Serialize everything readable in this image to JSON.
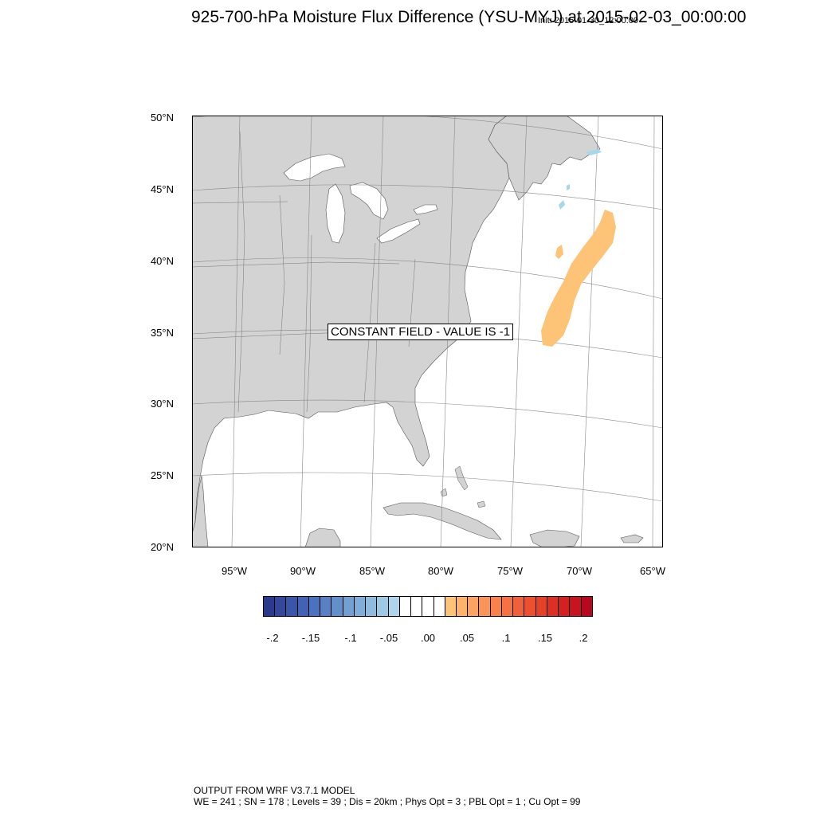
{
  "title": "925-700-hPa Moisture Flux Difference (YSU-MYJ) at 2015-02-03_00:00:00",
  "init_time": "Init: 2015-01-30_12:00:00",
  "map": {
    "lat_labels": [
      "50°N",
      "45°N",
      "40°N",
      "35°N",
      "30°N",
      "25°N",
      "20°N"
    ],
    "lon_labels": [
      "95°W",
      "90°W",
      "85°W",
      "80°W",
      "75°W",
      "70°W",
      "65°W"
    ],
    "constant_field_label": "CONSTANT FIELD - VALUE IS -1",
    "land_color": "#d3d3d3",
    "water_color": "#ffffff",
    "positive_anomaly_color": "#fdc478",
    "negative_anomaly_color": "#a6d8ea"
  },
  "colorbar": {
    "colors": [
      "#2c3a8e",
      "#33489b",
      "#3a56a8",
      "#4263b3",
      "#4b72bc",
      "#5781c4",
      "#6490ca",
      "#72a0d1",
      "#80aed8",
      "#8fbcde",
      "#9ec9e4",
      "#aed5ea",
      "#ffffff",
      "#ffffff",
      "#ffffff",
      "#ffffff",
      "#fdc478",
      "#fcb46c",
      "#fba362",
      "#f99358",
      "#f7824d",
      "#f47243",
      "#f0613a",
      "#eb5031",
      "#e4402a",
      "#dc3025",
      "#d32122",
      "#c81321",
      "#b8081f"
    ],
    "labels": [
      "-.2",
      "-.15",
      "-.1",
      "-.05",
      ".00",
      ".05",
      ".1",
      ".15",
      ".2"
    ]
  },
  "footer": {
    "line1": "OUTPUT FROM WRF V3.7.1 MODEL",
    "line2": "WE = 241 ; SN = 178 ; Levels = 39 ; Dis = 20km ; Phys Opt = 3 ; PBL Opt = 1 ; Cu Opt = 99"
  }
}
